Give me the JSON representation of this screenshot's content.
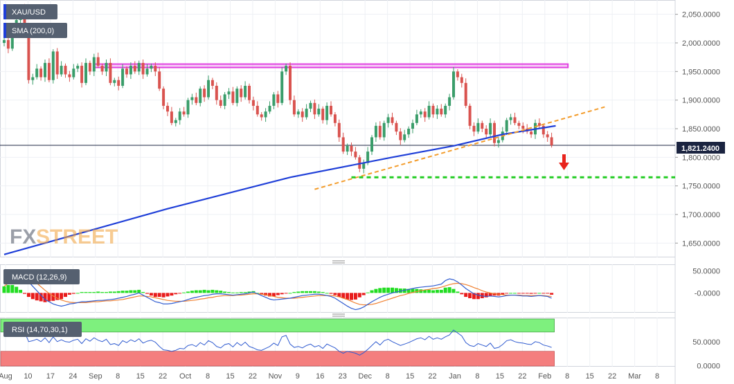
{
  "colors": {
    "background": "#ffffff",
    "panel_border": "#d0d4dc",
    "grid": "#eef0f4",
    "bull": "#3a9d6a",
    "bear": "#d9534f",
    "sma": "#1f3fd8",
    "resistance": "#e040e0",
    "trendline": "#f39c2b",
    "support": "#22cc22",
    "arrow": "#e8231c",
    "macd_line": "#2f5bd0",
    "signal_line": "#f08030",
    "hist_pos": "#22dd22",
    "hist_neg": "#e81c1c",
    "rsi_line": "#2f5bd0",
    "rsi_overbought": "#7ef07e",
    "rsi_oversold": "#f47e7e",
    "badge_bg": "#556070",
    "price_badge_bg": "#1b2440",
    "watermark_fx": "#8a8f9a",
    "watermark_street": "#f2a23a"
  },
  "legend": {
    "symbol": "XAU/USD",
    "sma": "SMA (200,0)",
    "macd": "MACD (12,26,9)",
    "rsi": "RSI (14,70,30,1)"
  },
  "watermark": {
    "fx": "FX",
    "street": "STREET"
  },
  "chart_data": [
    {
      "type": "candlestick",
      "series_name": "XAU/USD",
      "x_ticks": [
        "Aug",
        "10",
        "17",
        "24",
        "Sep",
        "8",
        "15",
        "22",
        "Oct",
        "8",
        "15",
        "22",
        "Nov",
        "9",
        "16",
        "23",
        "Dec",
        "8",
        "15",
        "22",
        "Jan",
        "8",
        "15",
        "22",
        "Feb",
        "8",
        "15",
        "22",
        "Mar",
        "8"
      ],
      "y_ticks": [
        "1,650.0000",
        "1,700.0000",
        "1,750.0000",
        "1,800.0000",
        "1,850.0000",
        "1,900.0000",
        "1,950.0000",
        "2,000.0000",
        "2,050.0000"
      ],
      "ylim": [
        1625,
        2075
      ],
      "last_price": "1,821.2400",
      "closes": [
        2005,
        1990,
        2018,
        2040,
        2060,
        2025,
        1935,
        1940,
        1955,
        1940,
        1965,
        1935,
        1985,
        1945,
        1960,
        1945,
        1940,
        1955,
        1960,
        1930,
        1965,
        1950,
        1975,
        1960,
        1950,
        1965,
        1930,
        1935,
        1925,
        1955,
        1945,
        1960,
        1950,
        1965,
        1945,
        1955,
        1960,
        1950,
        1920,
        1890,
        1880,
        1860,
        1865,
        1880,
        1875,
        1900,
        1905,
        1895,
        1920,
        1905,
        1935,
        1925,
        1900,
        1890,
        1910,
        1915,
        1895,
        1920,
        1905,
        1925,
        1900,
        1890,
        1875,
        1870,
        1880,
        1890,
        1910,
        1895,
        1950,
        1960,
        1900,
        1875,
        1880,
        1870,
        1885,
        1895,
        1875,
        1885,
        1865,
        1890,
        1875,
        1860,
        1835,
        1810,
        1820,
        1810,
        1800,
        1780,
        1790,
        1810,
        1835,
        1855,
        1835,
        1860,
        1870,
        1860,
        1845,
        1830,
        1840,
        1850,
        1860,
        1875,
        1880,
        1870,
        1890,
        1875,
        1885,
        1875,
        1890,
        1905,
        1950,
        1940,
        1930,
        1890,
        1855,
        1845,
        1860,
        1850,
        1840,
        1860,
        1825,
        1830,
        1845,
        1865,
        1870,
        1860,
        1855,
        1850,
        1845,
        1840,
        1860,
        1855,
        1840,
        1835,
        1821
      ],
      "sma200": [
        [
          0,
          1630
        ],
        [
          15,
          1660
        ],
        [
          40,
          1710
        ],
        [
          70,
          1765
        ],
        [
          95,
          1800
        ],
        [
          110,
          1820
        ],
        [
          122,
          1840
        ],
        [
          135,
          1855
        ]
      ],
      "resistance": {
        "from_index": 22,
        "to_index": 138,
        "low": 1957,
        "high": 1963
      },
      "trendline": [
        [
          76,
          1744
        ],
        [
          147,
          1888
        ]
      ],
      "support_level": 1765,
      "support_from_index": 85
    },
    {
      "type": "macd",
      "series_name": "MACD (12,26,9)",
      "y_ticks": [
        "50.0000",
        "-0.0000"
      ],
      "ylim": [
        -45,
        65
      ],
      "macd": [
        30,
        40,
        48,
        50,
        45,
        35,
        25,
        15,
        5,
        -5,
        -15,
        -20,
        -25,
        -28,
        -30,
        -28,
        -25,
        -24,
        -22,
        -20,
        -20,
        -19,
        -18,
        -17,
        -17,
        -16,
        -15,
        -14,
        -12,
        -10,
        -8,
        -5,
        -3,
        0,
        -5,
        -10,
        -15,
        -20,
        -22,
        -25,
        -25,
        -24,
        -22,
        -20,
        -18,
        -15,
        -12,
        -10,
        -8,
        -6,
        -5,
        -3,
        -2,
        -2,
        -3,
        -4,
        -5,
        -4,
        -3,
        -2,
        0,
        2,
        -2,
        -6,
        -10,
        -14,
        -16,
        -15,
        -14,
        -13,
        -12,
        -10,
        -8,
        -6,
        -5,
        -4,
        -3,
        -3,
        -4,
        -6,
        -8,
        -12,
        -18,
        -24,
        -30,
        -35,
        -38,
        -36,
        -32,
        -26,
        -20,
        -15,
        -10,
        -6,
        -3,
        0,
        2,
        4,
        6,
        8,
        10,
        12,
        13,
        14,
        15,
        16,
        18,
        20,
        28,
        32,
        30,
        25,
        18,
        10,
        4,
        -2,
        -5,
        -7,
        -8,
        -7,
        -8,
        -9,
        -8,
        -6,
        -5,
        -5,
        -6,
        -7,
        -7,
        -8,
        -7,
        -6,
        -7,
        -8,
        -12
      ],
      "signal": [
        15,
        22,
        30,
        36,
        38,
        37,
        34,
        29,
        22,
        14,
        6,
        -1,
        -7,
        -12,
        -16,
        -19,
        -21,
        -22,
        -22,
        -22,
        -22,
        -21,
        -20,
        -20,
        -19,
        -18,
        -18,
        -17,
        -16,
        -15,
        -13,
        -11,
        -9,
        -7,
        -7,
        -8,
        -9,
        -11,
        -13,
        -15,
        -17,
        -18,
        -19,
        -19,
        -19,
        -18,
        -17,
        -16,
        -14,
        -13,
        -11,
        -10,
        -8,
        -7,
        -6,
        -6,
        -6,
        -5,
        -5,
        -4,
        -3,
        -2,
        -2,
        -3,
        -4,
        -6,
        -8,
        -10,
        -11,
        -12,
        -12,
        -12,
        -11,
        -10,
        -9,
        -8,
        -7,
        -6,
        -6,
        -6,
        -6,
        -7,
        -9,
        -12,
        -15,
        -19,
        -23,
        -26,
        -27,
        -27,
        -26,
        -24,
        -21,
        -18,
        -15,
        -12,
        -9,
        -6,
        -4,
        -1,
        1,
        3,
        5,
        7,
        8,
        10,
        11,
        13,
        16,
        19,
        21,
        22,
        21,
        19,
        16,
        12,
        9,
        5,
        2,
        0,
        -2,
        -3,
        -4,
        -5,
        -5,
        -5,
        -5,
        -6,
        -6,
        -6,
        -6,
        -6,
        -6,
        -7,
        -8
      ]
    },
    {
      "type": "rsi",
      "series_name": "RSI (14,70,30,1)",
      "y_ticks": [
        "50.0000",
        "0.0000"
      ],
      "ylim": [
        -2,
        100
      ],
      "overbought": 70,
      "oversold": 30,
      "values": [
        72,
        68,
        74,
        78,
        80,
        70,
        50,
        52,
        55,
        50,
        58,
        48,
        60,
        50,
        54,
        50,
        49,
        53,
        55,
        46,
        56,
        51,
        58,
        53,
        50,
        55,
        44,
        46,
        42,
        52,
        48,
        54,
        50,
        56,
        47,
        51,
        53,
        49,
        40,
        33,
        32,
        30,
        32,
        36,
        35,
        42,
        44,
        40,
        48,
        43,
        52,
        48,
        40,
        37,
        44,
        46,
        39,
        48,
        42,
        49,
        40,
        37,
        33,
        32,
        36,
        40,
        47,
        42,
        60,
        63,
        45,
        38,
        40,
        37,
        42,
        45,
        39,
        42,
        36,
        45,
        41,
        37,
        30,
        26,
        30,
        28,
        26,
        22,
        27,
        34,
        42,
        50,
        43,
        52,
        55,
        50,
        46,
        42,
        45,
        48,
        52,
        56,
        58,
        54,
        61,
        55,
        58,
        55,
        60,
        64,
        74,
        68,
        62,
        48,
        42,
        40,
        46,
        43,
        40,
        47,
        36,
        38,
        44,
        52,
        54,
        50,
        48,
        47,
        45,
        44,
        50,
        48,
        43,
        41,
        38
      ]
    }
  ]
}
